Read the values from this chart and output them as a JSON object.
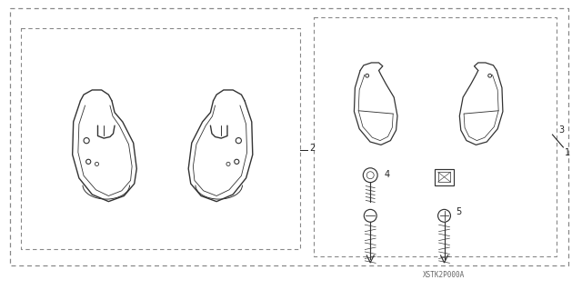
{
  "bg_color": "#ffffff",
  "dash_color": "#888888",
  "line_color": "#333333",
  "text_color": "#222222",
  "label_1": "1",
  "label_2": "2",
  "label_3": "3",
  "label_4": "4",
  "label_5": "5",
  "watermark": "XSTK2P000A"
}
